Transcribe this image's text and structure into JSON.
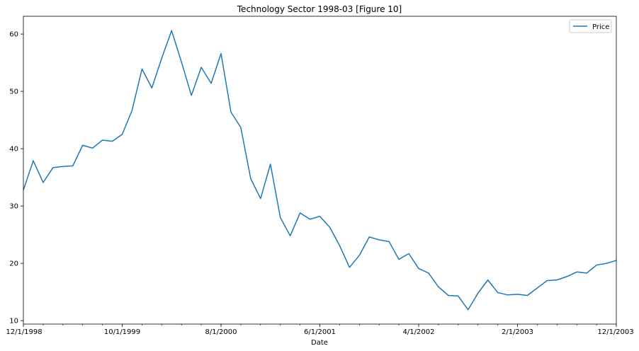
{
  "chart_data": {
    "type": "line",
    "title": "Technology Sector 1998-03 [Figure 10]",
    "xlabel": "Date",
    "ylabel": "",
    "x_tick_labels": [
      "12/1/1998",
      "10/1/1999",
      "8/1/2000",
      "6/1/2001",
      "4/1/2002",
      "2/1/2003",
      "12/1/2003"
    ],
    "y_ticks": [
      10,
      20,
      30,
      40,
      50,
      60
    ],
    "ylim": [
      9.4,
      63.1
    ],
    "grid": false,
    "legend_position": "top-right",
    "line_color": "#1f77b4",
    "x": [
      "1998-12",
      "1999-01",
      "1999-02",
      "1999-03",
      "1999-04",
      "1999-05",
      "1999-06",
      "1999-07",
      "1999-08",
      "1999-09",
      "1999-10",
      "1999-11",
      "1999-12",
      "2000-01",
      "2000-02",
      "2000-03",
      "2000-04",
      "2000-05",
      "2000-06",
      "2000-07",
      "2000-08",
      "2000-09",
      "2000-10",
      "2000-11",
      "2000-12",
      "2001-01",
      "2001-02",
      "2001-03",
      "2001-04",
      "2001-05",
      "2001-06",
      "2001-07",
      "2001-08",
      "2001-09",
      "2001-10",
      "2001-11",
      "2001-12",
      "2002-01",
      "2002-02",
      "2002-03",
      "2002-04",
      "2002-05",
      "2002-06",
      "2002-07",
      "2002-08",
      "2002-09",
      "2002-10",
      "2002-11",
      "2002-12",
      "2003-01",
      "2003-02",
      "2003-03",
      "2003-04",
      "2003-05",
      "2003-06",
      "2003-07",
      "2003-08",
      "2003-09",
      "2003-10",
      "2003-11",
      "2003-12"
    ],
    "series": [
      {
        "name": "Price",
        "values": [
          32.8,
          37.9,
          34.1,
          36.7,
          36.9,
          37.0,
          40.6,
          40.1,
          41.5,
          41.3,
          42.5,
          46.7,
          53.9,
          50.6,
          55.8,
          60.6,
          55.1,
          49.3,
          54.2,
          51.4,
          56.6,
          46.4,
          43.7,
          34.8,
          31.3,
          37.3,
          28.0,
          24.8,
          28.8,
          27.7,
          28.2,
          26.3,
          23.1,
          19.3,
          21.4,
          24.6,
          24.1,
          23.8,
          20.7,
          21.7,
          19.1,
          18.3,
          15.9,
          14.4,
          14.3,
          11.9,
          14.8,
          17.1,
          14.9,
          14.5,
          14.6,
          14.4,
          15.7,
          17.0,
          17.1,
          17.7,
          18.5,
          18.3,
          19.7,
          20.0,
          20.5
        ]
      }
    ]
  }
}
